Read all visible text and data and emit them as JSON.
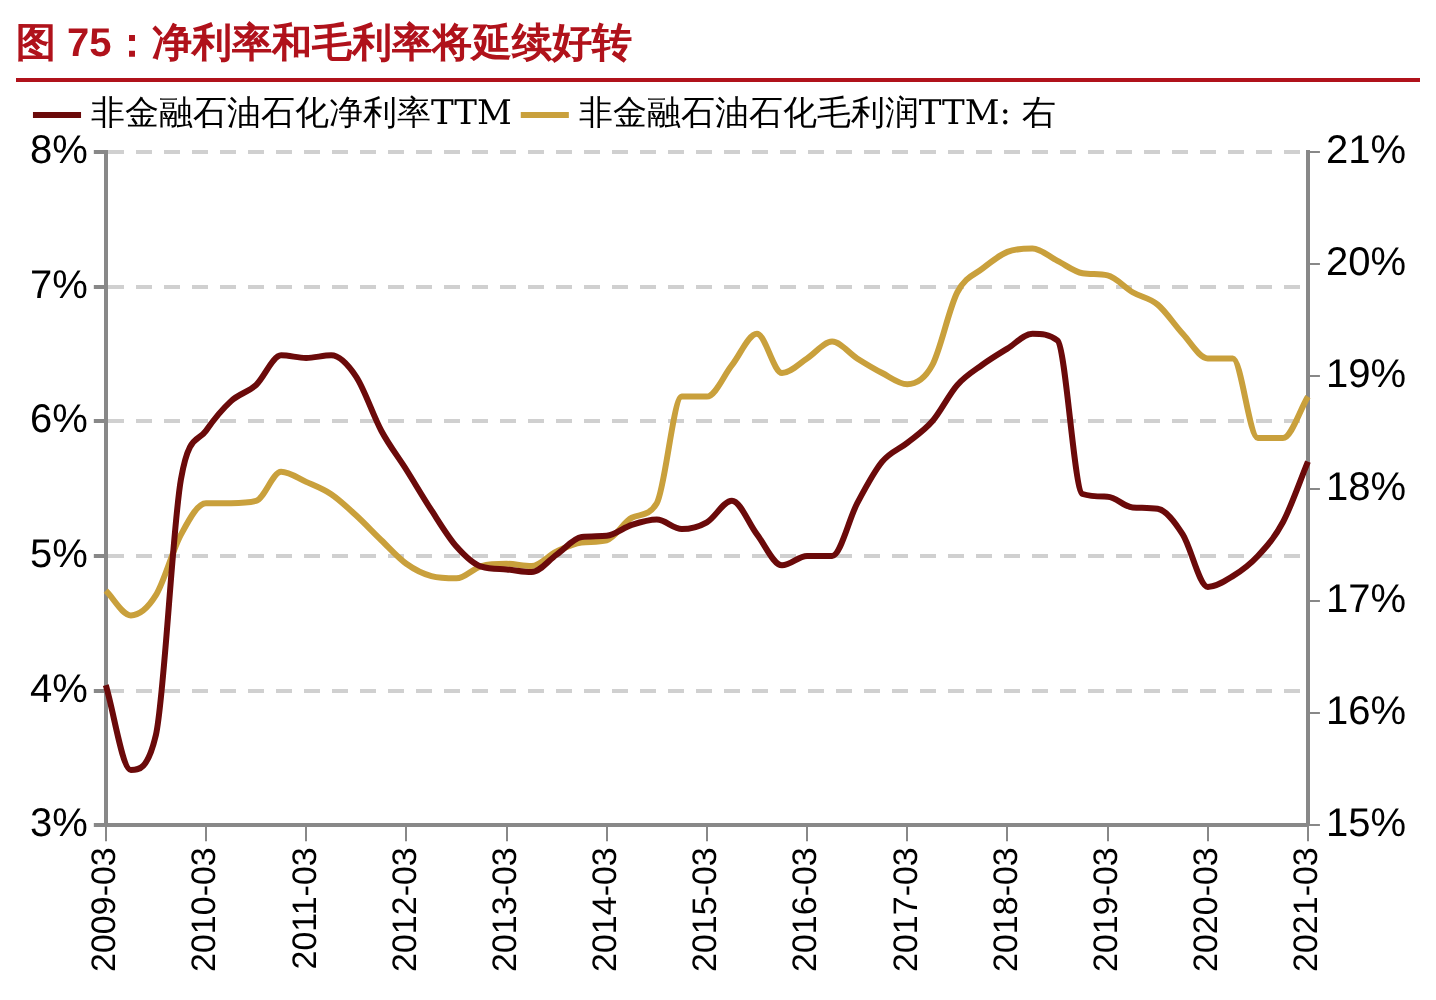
{
  "chart_data": {
    "type": "line",
    "title": "图 75：净利率和毛利率将延续好转",
    "categories": [
      "2009-03",
      null,
      null,
      null,
      "2010-03",
      null,
      null,
      null,
      "2011-03",
      null,
      null,
      null,
      "2012-03",
      null,
      null,
      null,
      "2013-03",
      null,
      null,
      null,
      "2014-03",
      null,
      null,
      null,
      "2015-03",
      null,
      null,
      null,
      "2016-03",
      null,
      null,
      null,
      "2017-03",
      null,
      null,
      null,
      "2018-03",
      null,
      null,
      null,
      "2019-03",
      null,
      null,
      null,
      "2020-03",
      null,
      null,
      null,
      "2021-03"
    ],
    "series": [
      {
        "name": "非金融石油石化净利率TTM",
        "color": "#6b0a0a",
        "values": [
          4.04,
          3.41,
          3.67,
          5.57,
          5.93,
          6.15,
          6.27,
          6.49,
          6.47,
          6.49,
          6.33,
          5.93,
          5.64,
          5.34,
          5.07,
          4.92,
          4.9,
          4.88,
          5.01,
          5.14,
          5.15,
          5.23,
          5.27,
          5.2,
          5.25,
          5.41,
          5.16,
          4.93,
          5.0,
          5.0,
          5.39,
          5.7,
          5.84,
          6.0,
          6.27,
          6.42,
          6.54,
          6.65,
          6.6,
          5.46,
          5.44,
          5.36,
          5.35,
          5.16,
          4.77,
          4.85,
          5.0,
          5.25,
          5.7
        ]
      },
      {
        "name": "非金融石油石化毛利润TTM: 右",
        "color": "#c9a03c",
        "axis": "y2",
        "values": [
          17.09,
          16.87,
          17.05,
          17.59,
          17.87,
          17.87,
          17.89,
          18.15,
          18.06,
          17.95,
          17.76,
          17.54,
          17.33,
          17.22,
          17.2,
          17.31,
          17.33,
          17.31,
          17.44,
          17.52,
          17.54,
          17.74,
          17.87,
          18.82,
          18.82,
          19.1,
          19.38,
          19.03,
          19.16,
          19.31,
          19.16,
          19.03,
          18.93,
          19.1,
          19.75,
          19.96,
          20.11,
          20.14,
          20.03,
          19.92,
          19.9,
          19.75,
          19.64,
          19.38,
          19.16,
          19.16,
          18.45,
          18.45,
          18.82
        ]
      }
    ],
    "ylim": [
      3,
      8
    ],
    "yticks": [
      {
        "value": 3,
        "label": "3%"
      },
      {
        "value": 4,
        "label": "4%"
      },
      {
        "value": 5,
        "label": "5%"
      },
      {
        "value": 6,
        "label": "6%"
      },
      {
        "value": 7,
        "label": "7%"
      },
      {
        "value": 8,
        "label": "8%"
      }
    ],
    "y2lim": [
      15,
      21
    ],
    "y2ticks": [
      {
        "value": 15,
        "label": "15%"
      },
      {
        "value": 16,
        "label": "16%"
      },
      {
        "value": 17,
        "label": "17%"
      },
      {
        "value": 18,
        "label": "18%"
      },
      {
        "value": 19,
        "label": "19%"
      },
      {
        "value": 20,
        "label": "20%"
      },
      {
        "value": 21,
        "label": "21%"
      }
    ],
    "grid": "y",
    "legend": "top left"
  }
}
